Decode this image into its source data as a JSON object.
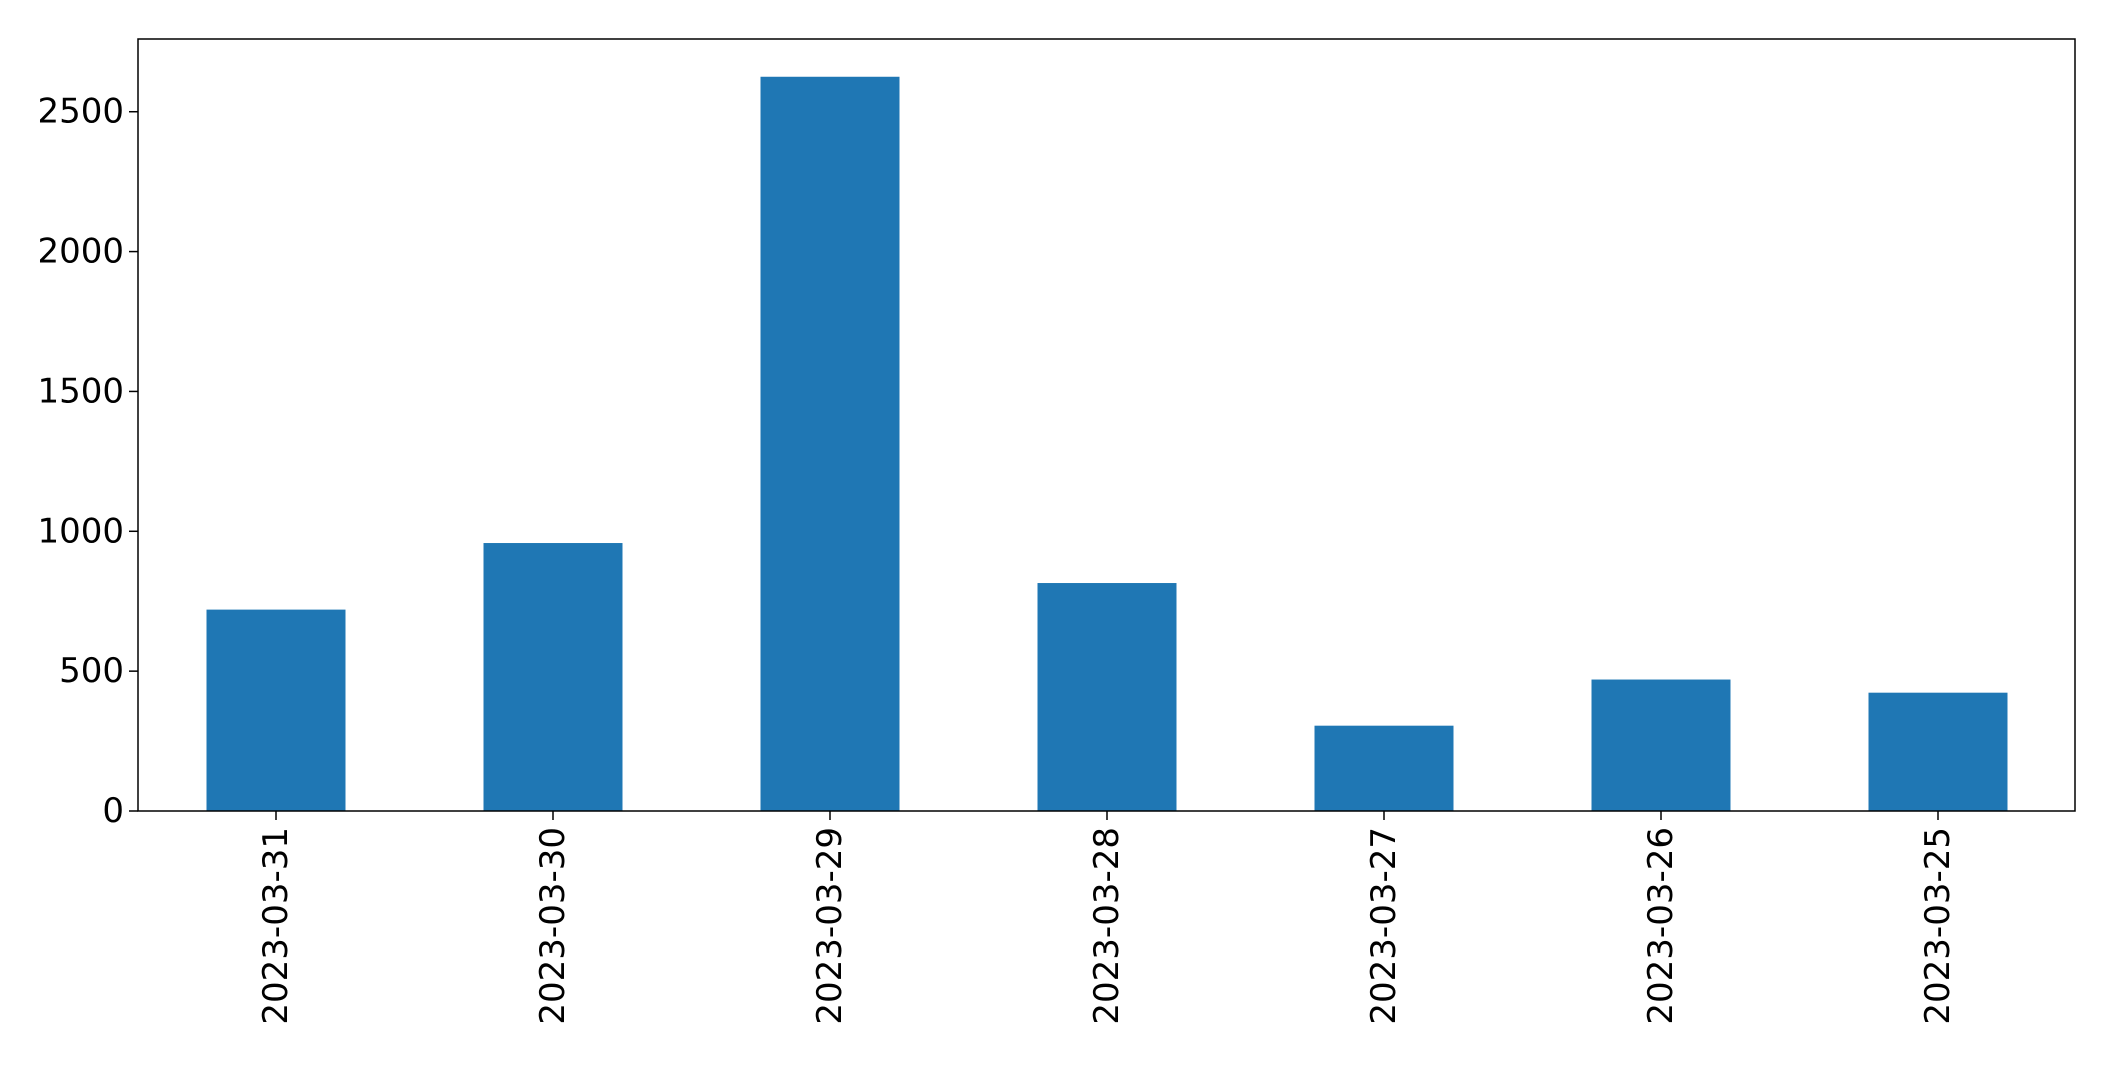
{
  "chart_data": {
    "type": "bar",
    "title": "",
    "xlabel": "",
    "ylabel": "",
    "categories": [
      "2023-03-31",
      "2023-03-30",
      "2023-03-29",
      "2023-03-28",
      "2023-03-27",
      "2023-03-26",
      "2023-03-25"
    ],
    "values": [
      720,
      958,
      2625,
      815,
      305,
      470,
      423
    ],
    "ylim": [
      0,
      2760
    ],
    "yticks": [
      0,
      500,
      1000,
      1500,
      2000,
      2500
    ],
    "bar_color": "#1f77b4",
    "grid": false,
    "legend": "none"
  }
}
